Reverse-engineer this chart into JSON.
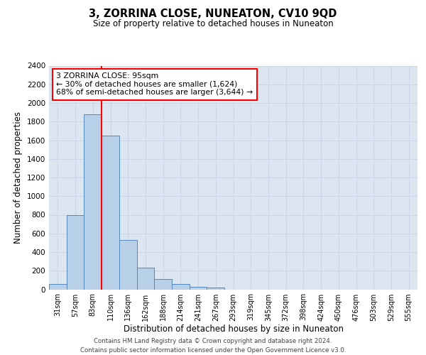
{
  "title": "3, ZORRINA CLOSE, NUNEATON, CV10 9QD",
  "subtitle": "Size of property relative to detached houses in Nuneaton",
  "xlabel": "Distribution of detached houses by size in Nuneaton",
  "ylabel": "Number of detached properties",
  "categories": [
    "31sqm",
    "57sqm",
    "83sqm",
    "110sqm",
    "136sqm",
    "162sqm",
    "188sqm",
    "214sqm",
    "241sqm",
    "267sqm",
    "293sqm",
    "319sqm",
    "345sqm",
    "372sqm",
    "398sqm",
    "424sqm",
    "450sqm",
    "476sqm",
    "503sqm",
    "529sqm",
    "555sqm"
  ],
  "values": [
    55,
    800,
    1880,
    1650,
    530,
    235,
    110,
    55,
    30,
    20,
    0,
    0,
    0,
    0,
    0,
    0,
    0,
    0,
    0,
    0,
    0
  ],
  "bar_color": "#b8cfe8",
  "bar_edge_color": "#5588bb",
  "red_line_index": 2,
  "annotation_line1": "3 ZORRINA CLOSE: 95sqm",
  "annotation_line2": "← 30% of detached houses are smaller (1,624)",
  "annotation_line3": "68% of semi-detached houses are larger (3,644) →",
  "ylim": [
    0,
    2400
  ],
  "yticks": [
    0,
    200,
    400,
    600,
    800,
    1000,
    1200,
    1400,
    1600,
    1800,
    2000,
    2200,
    2400
  ],
  "grid_color": "#ccd6e8",
  "background_color": "#dce6f0",
  "footer_line1": "Contains HM Land Registry data © Crown copyright and database right 2024.",
  "footer_line2": "Contains public sector information licensed under the Open Government Licence v3.0."
}
